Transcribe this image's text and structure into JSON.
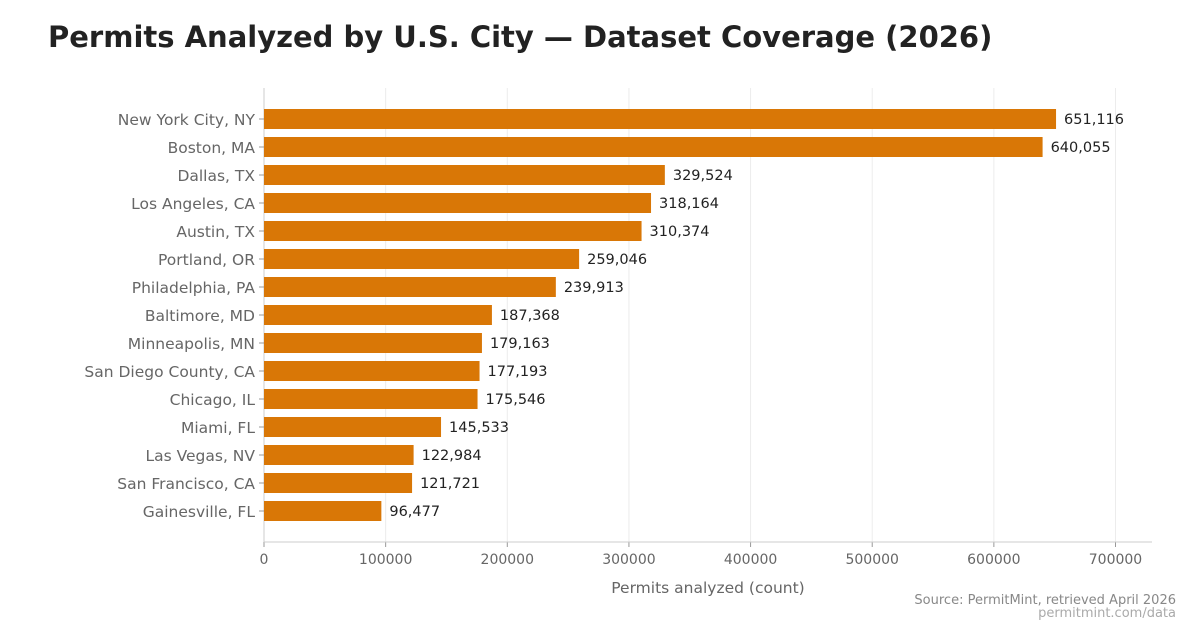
{
  "chart_data": {
    "type": "bar",
    "orientation": "horizontal",
    "title": "Permits Analyzed by U.S. City — Dataset Coverage (2026)",
    "xlabel": "Permits analyzed (count)",
    "ylabel": "",
    "xlim": [
      0,
      730000
    ],
    "xticks": [
      0,
      100000,
      200000,
      300000,
      400000,
      500000,
      600000,
      700000
    ],
    "grid": "vertical",
    "bar_color": "#d97706",
    "categories": [
      "New York City, NY",
      "Boston, MA",
      "Dallas, TX",
      "Los Angeles, CA",
      "Austin, TX",
      "Portland, OR",
      "Philadelphia, PA",
      "Baltimore, MD",
      "Minneapolis, MN",
      "San Diego County, CA",
      "Chicago, IL",
      "Miami, FL",
      "Las Vegas, NV",
      "San Francisco, CA",
      "Gainesville, FL"
    ],
    "values": [
      651116,
      640055,
      329524,
      318164,
      310374,
      259046,
      239913,
      187368,
      179163,
      177193,
      175546,
      145533,
      122984,
      121721,
      96477
    ],
    "data_labels": [
      "651,116",
      "640,055",
      "329,524",
      "318,164",
      "310,374",
      "259,046",
      "239,913",
      "187,368",
      "179,163",
      "177,193",
      "175,546",
      "145,533",
      "122,984",
      "121,721",
      "96,477"
    ]
  },
  "footer": {
    "source": "Source: PermitMint, retrieved April 2026",
    "url": "permitmint.com/data"
  }
}
